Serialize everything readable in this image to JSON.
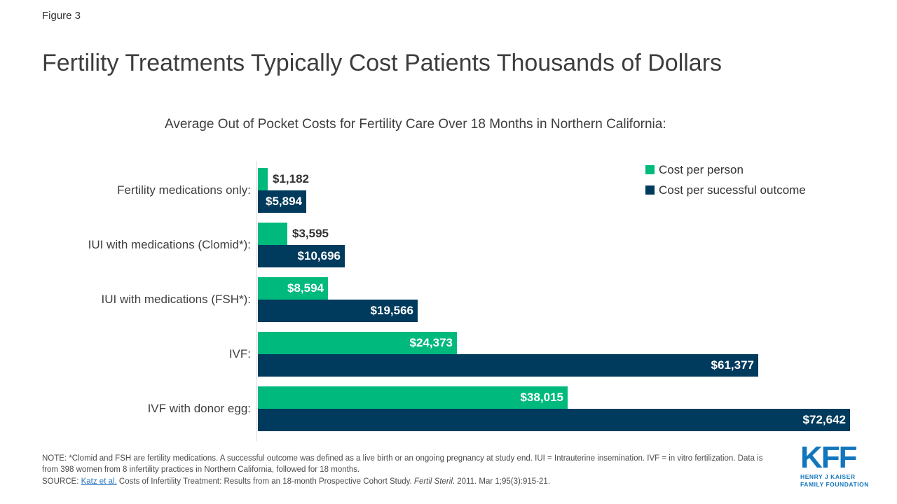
{
  "figure_label": "Figure 3",
  "title": "Fertility Treatments Typically Cost Patients Thousands of Dollars",
  "subtitle": "Average Out of Pocket Costs for Fertility Care Over 18 Months in Northern California:",
  "legend": {
    "items": [
      {
        "label": "Cost per person",
        "color": "#00b97d"
      },
      {
        "label": "Cost per sucessful outcome",
        "color": "#003a5c"
      }
    ]
  },
  "chart_data": {
    "type": "bar",
    "orientation": "horizontal",
    "title": "Fertility Treatments Typically Cost Patients Thousands of Dollars",
    "subtitle": "Average Out of Pocket Costs for Fertility Care Over 18 Months in Northern California:",
    "categories": [
      "Fertility medications only:",
      "IUI with medications (Clomid*):",
      "IUI with medications (FSH*):",
      "IVF:",
      "IVF with donor egg:"
    ],
    "series": [
      {
        "name": "Cost per person",
        "color": "#00b97d",
        "values": [
          1182,
          3595,
          8594,
          24373,
          38015
        ],
        "labels": [
          "$1,182",
          "$3,595",
          "$8,594",
          "$24,373",
          "$38,015"
        ]
      },
      {
        "name": "Cost per sucessful outcome",
        "color": "#003a5c",
        "values": [
          5894,
          10696,
          19566,
          61377,
          72642
        ],
        "labels": [
          "$5,894",
          "$10,696",
          "$19,566",
          "$61,377",
          "$72,642"
        ]
      }
    ],
    "xlim": [
      0,
      72642
    ],
    "grid": false,
    "legend_position": "top-right"
  },
  "footer": {
    "note": "NOTE: *Clomid and FSH are fertility medications. A successful outcome was defined as a live birth or an ongoing pregnancy at study end. IUI = Intrauterine insemination. IVF = in vitro fertilization. Data is from 398 women from 8 infertility practices in Northern California, followed for 18 months.",
    "source_prefix": "SOURCE: ",
    "source_link": "Katz et al.",
    "source_mid": " Costs of Infertility Treatment: Results from an 18-month Prospective Cohort Study. ",
    "source_journal": "Fertil Steril",
    "source_suffix": ". 2011. Mar 1;95(3):915-21."
  },
  "logo": {
    "mark": "KFF",
    "line1": "HENRY J KAISER",
    "line2": "FAMILY FOUNDATION",
    "color": "#1276bd"
  }
}
